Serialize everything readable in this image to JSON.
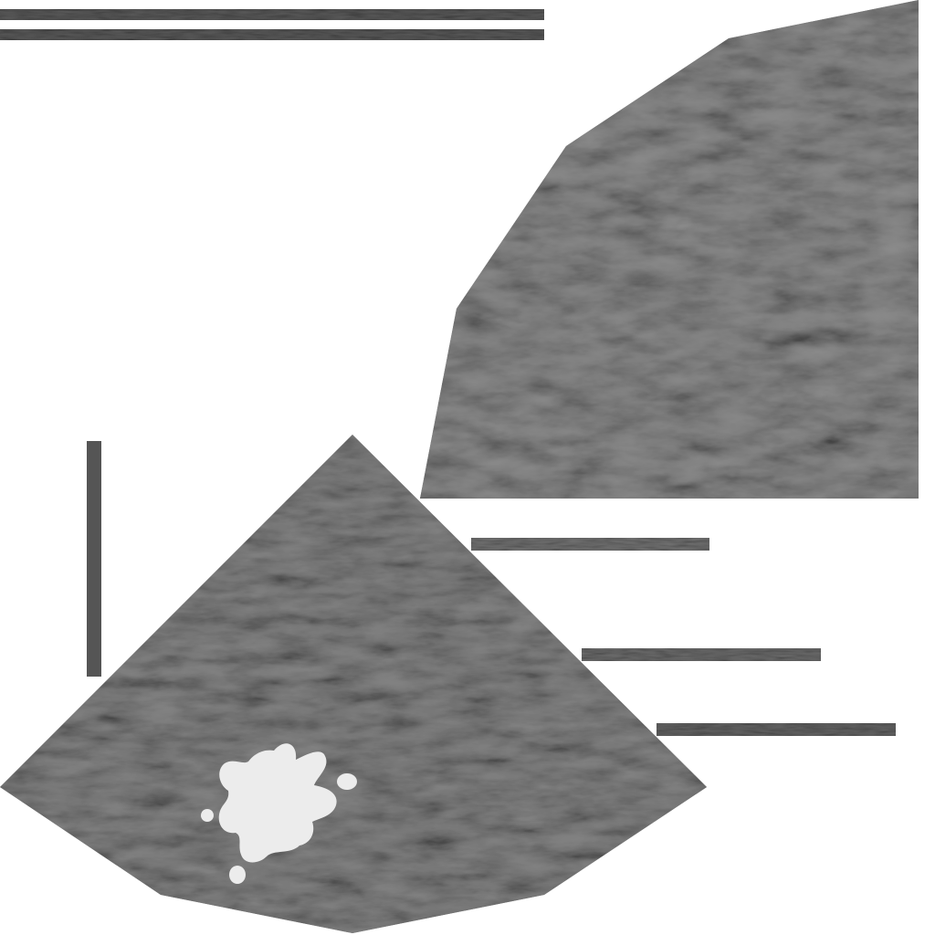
{
  "image": {
    "description_kind": "ultrasound-style composite",
    "background_color": "#ffffff",
    "speckle_base_color": "#6a6a6a",
    "speckle_dark_color": "#505050",
    "speckle_light_color": "#8e8e8e",
    "lesion_color": "#ececec",
    "bar_color": "#5a5a5a"
  }
}
